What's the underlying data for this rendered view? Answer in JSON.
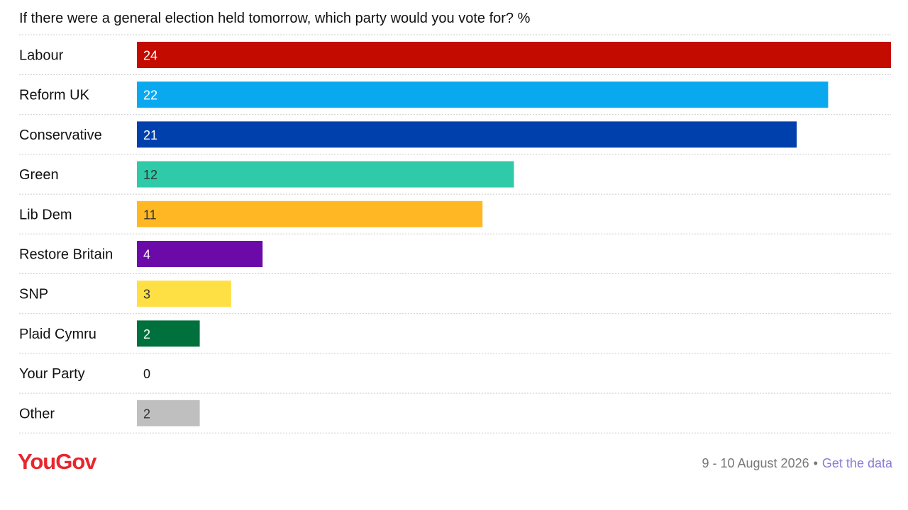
{
  "chart_data": {
    "type": "bar",
    "orientation": "horizontal",
    "title": "If there were a general election held tomorrow, which party would you vote for? %",
    "categories": [
      "Labour",
      "Reform UK",
      "Conservative",
      "Green",
      "Lib Dem",
      "Restore Britain",
      "SNP",
      "Plaid Cymru",
      "Your Party",
      "Other"
    ],
    "values": [
      24,
      22,
      21,
      12,
      11,
      4,
      3,
      2,
      0,
      2
    ],
    "colors": [
      "#c40b00",
      "#0aa9ef",
      "#0040ac",
      "#2fcaa8",
      "#ffb823",
      "#6c0aa9",
      "#ffe044",
      "#00703c",
      "#dddddd",
      "#c0bfbf"
    ],
    "value_label_colors": [
      "#ffffff",
      "#ffffff",
      "#ffffff",
      "#333333",
      "#333333",
      "#ffffff",
      "#333333",
      "#ffffff",
      "#111111",
      "#333333"
    ],
    "xlim": [
      0,
      24
    ],
    "grid": "dotted row separators",
    "legend": "none"
  },
  "brand": {
    "logo_text": "YouGov",
    "logo_color": "#e8262d"
  },
  "footer": {
    "date": "9 - 10 August 2026",
    "separator": "•",
    "link_label": "Get the data"
  }
}
